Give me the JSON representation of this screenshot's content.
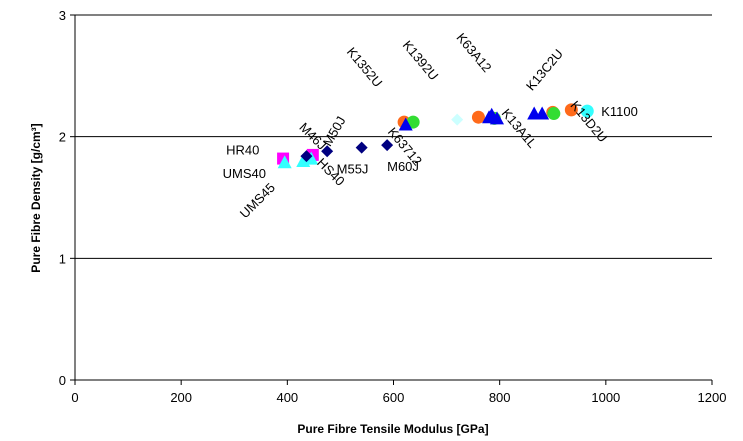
{
  "chart_data": {
    "type": "scatter",
    "xlabel": "Pure Fibre Tensile Modulus [GPa]",
    "ylabel": "Pure Fibre Density [g/cm³]",
    "xlim": [
      0,
      1200
    ],
    "ylim": [
      0,
      3
    ],
    "x_ticks": [
      "0",
      "200",
      "400",
      "600",
      "800",
      "1000",
      "1200"
    ],
    "y_ticks": [
      "0",
      "1",
      "2",
      "3"
    ],
    "grid": "horizontal major lines at 1, 2, 3",
    "legend": "none",
    "series": [
      {
        "marker": "square",
        "color": "#ff00ff",
        "points": [
          {
            "x": 392,
            "y": 1.82,
            "label": "HR40"
          },
          {
            "x": 448,
            "y": 1.85,
            "label": ""
          }
        ]
      },
      {
        "marker": "triangle",
        "color": "#33ffff",
        "points": [
          {
            "x": 395,
            "y": 1.79,
            "label": "UMS40"
          },
          {
            "x": 430,
            "y": 1.8,
            "label": "UMS45"
          },
          {
            "x": 445,
            "y": 1.82,
            "label": "HS40"
          }
        ]
      },
      {
        "marker": "diamond",
        "color": "#000080",
        "points": [
          {
            "x": 436,
            "y": 1.84,
            "label": "M46J"
          },
          {
            "x": 475,
            "y": 1.88,
            "label": "M50J"
          },
          {
            "x": 540,
            "y": 1.91,
            "label": "M55J"
          },
          {
            "x": 588,
            "y": 1.93,
            "label": "M60J"
          }
        ]
      },
      {
        "marker": "circle",
        "color": "#ff6a1a",
        "points": [
          {
            "x": 620,
            "y": 2.12,
            "label": "K1352U"
          },
          {
            "x": 760,
            "y": 2.16,
            "label": ""
          },
          {
            "x": 900,
            "y": 2.2,
            "label": ""
          },
          {
            "x": 935,
            "y": 2.22,
            "label": ""
          }
        ]
      },
      {
        "marker": "circle",
        "color": "#33dd33",
        "points": [
          {
            "x": 637,
            "y": 2.12,
            "label": "K63712"
          },
          {
            "x": 790,
            "y": 2.15,
            "label": ""
          },
          {
            "x": 902,
            "y": 2.19,
            "label": "K13D2U"
          }
        ]
      },
      {
        "marker": "diamond",
        "color": "#ccffff",
        "points": [
          {
            "x": 720,
            "y": 2.14,
            "label": ""
          }
        ]
      },
      {
        "marker": "triangle",
        "color": "#0000ee",
        "points": [
          {
            "x": 623,
            "y": 2.1,
            "label": ""
          },
          {
            "x": 780,
            "y": 2.16,
            "label": "K1392U"
          },
          {
            "x": 785,
            "y": 2.18,
            "label": "K63A12"
          },
          {
            "x": 795,
            "y": 2.15,
            "label": "K13A1L"
          },
          {
            "x": 865,
            "y": 2.19,
            "label": ""
          },
          {
            "x": 880,
            "y": 2.19,
            "label": "K13C2U"
          }
        ]
      },
      {
        "marker": "circle",
        "color": "#33ffff",
        "points": [
          {
            "x": 965,
            "y": 2.21,
            "label": "K1100"
          }
        ]
      }
    ]
  }
}
